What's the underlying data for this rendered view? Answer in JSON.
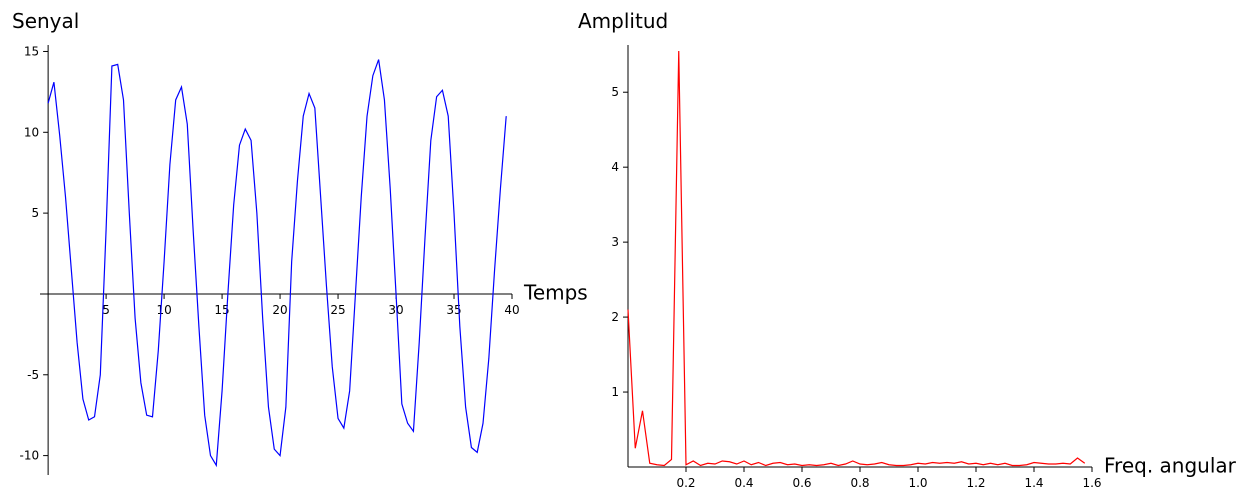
{
  "chart_data": [
    {
      "type": "line",
      "title": "Senyal",
      "xlabel": "Temps",
      "color": "#0000ff",
      "x": [
        0,
        0.5,
        1,
        1.5,
        2,
        2.5,
        3,
        3.5,
        4,
        4.5,
        5,
        5.5,
        6,
        6.5,
        7,
        7.5,
        8,
        8.5,
        9,
        9.5,
        10,
        10.5,
        11,
        11.5,
        12,
        12.5,
        13,
        13.5,
        14,
        14.5,
        15,
        15.5,
        16,
        16.5,
        17,
        17.5,
        18,
        18.5,
        19,
        19.5,
        20,
        20.5,
        21,
        21.5,
        22,
        22.5,
        23,
        23.5,
        24,
        24.5,
        25,
        25.5,
        26,
        26.5,
        27,
        27.5,
        28,
        28.5,
        29,
        29.5,
        30,
        30.5,
        31,
        31.5,
        32,
        32.5,
        33,
        33.5,
        34,
        34.5,
        35,
        35.5,
        36,
        36.5,
        37,
        37.5,
        38,
        38.5,
        39,
        39.5
      ],
      "values": [
        11.8,
        13.1,
        9.8,
        6,
        1.5,
        -3,
        -6.5,
        -7.8,
        -7.6,
        -5,
        4,
        14.1,
        14.2,
        12,
        5,
        -1.5,
        -5.5,
        -7.5,
        -7.6,
        -3.5,
        2,
        8,
        12,
        12.8,
        10.5,
        4,
        -2,
        -7.5,
        -10,
        -10.6,
        -6,
        0,
        5.5,
        9.2,
        10.2,
        9.5,
        5,
        -1.5,
        -7,
        -9.6,
        -10,
        -7,
        2,
        7,
        11,
        12.4,
        11.5,
        6,
        0.5,
        -4.5,
        -7.7,
        -8.3,
        -6,
        0,
        6,
        11,
        13.5,
        14.5,
        12,
        6.5,
        0,
        -6.8,
        -8,
        -8.5,
        -3,
        3.5,
        9.5,
        12.2,
        12.6,
        11,
        5,
        -2,
        -7,
        -9.5,
        -9.8,
        -8,
        -4,
        1.5,
        6.5,
        11
      ],
      "xlim": [
        -0.7,
        40
      ],
      "ylim": [
        -11.2,
        15.4
      ],
      "xticks": [
        5,
        10,
        15,
        20,
        25,
        30,
        35,
        40
      ],
      "yticks": [
        -10,
        -5,
        5,
        10,
        15
      ]
    },
    {
      "type": "line",
      "title": "Amplitud",
      "xlabel": "Freq. angular",
      "color": "#ff0000",
      "x": [
        0,
        0.025,
        0.05,
        0.075,
        0.1,
        0.125,
        0.15,
        0.175,
        0.2,
        0.225,
        0.25,
        0.275,
        0.3,
        0.325,
        0.35,
        0.375,
        0.4,
        0.425,
        0.45,
        0.475,
        0.5,
        0.525,
        0.55,
        0.575,
        0.6,
        0.625,
        0.65,
        0.675,
        0.7,
        0.725,
        0.75,
        0.775,
        0.8,
        0.825,
        0.85,
        0.875,
        0.9,
        0.925,
        0.95,
        0.975,
        1,
        1.025,
        1.05,
        1.075,
        1.1,
        1.125,
        1.15,
        1.175,
        1.2,
        1.225,
        1.25,
        1.275,
        1.3,
        1.325,
        1.35,
        1.375,
        1.4,
        1.425,
        1.45,
        1.475,
        1.5,
        1.525,
        1.55,
        1.575
      ],
      "values": [
        2.1,
        0.25,
        0.75,
        0.05,
        0.03,
        0.02,
        0.1,
        5.55,
        0.03,
        0.08,
        0.02,
        0.05,
        0.04,
        0.08,
        0.07,
        0.04,
        0.08,
        0.03,
        0.06,
        0.02,
        0.05,
        0.06,
        0.03,
        0.04,
        0.02,
        0.03,
        0.02,
        0.03,
        0.05,
        0.02,
        0.04,
        0.08,
        0.04,
        0.03,
        0.04,
        0.06,
        0.03,
        0.02,
        0.02,
        0.03,
        0.05,
        0.04,
        0.06,
        0.05,
        0.06,
        0.05,
        0.07,
        0.04,
        0.05,
        0.03,
        0.05,
        0.03,
        0.05,
        0.02,
        0.02,
        0.03,
        0.06,
        0.05,
        0.04,
        0.04,
        0.05,
        0.04,
        0.12,
        0.05
      ],
      "xlim": [
        0,
        1.6
      ],
      "ylim": [
        0,
        5.63
      ],
      "xticks": [
        0.2,
        0.4,
        0.6,
        0.8,
        {
          "value": 1,
          "label": "1.0"
        },
        1.2,
        1.4,
        1.6
      ],
      "yticks": [
        1,
        2,
        3,
        4,
        5
      ]
    }
  ]
}
